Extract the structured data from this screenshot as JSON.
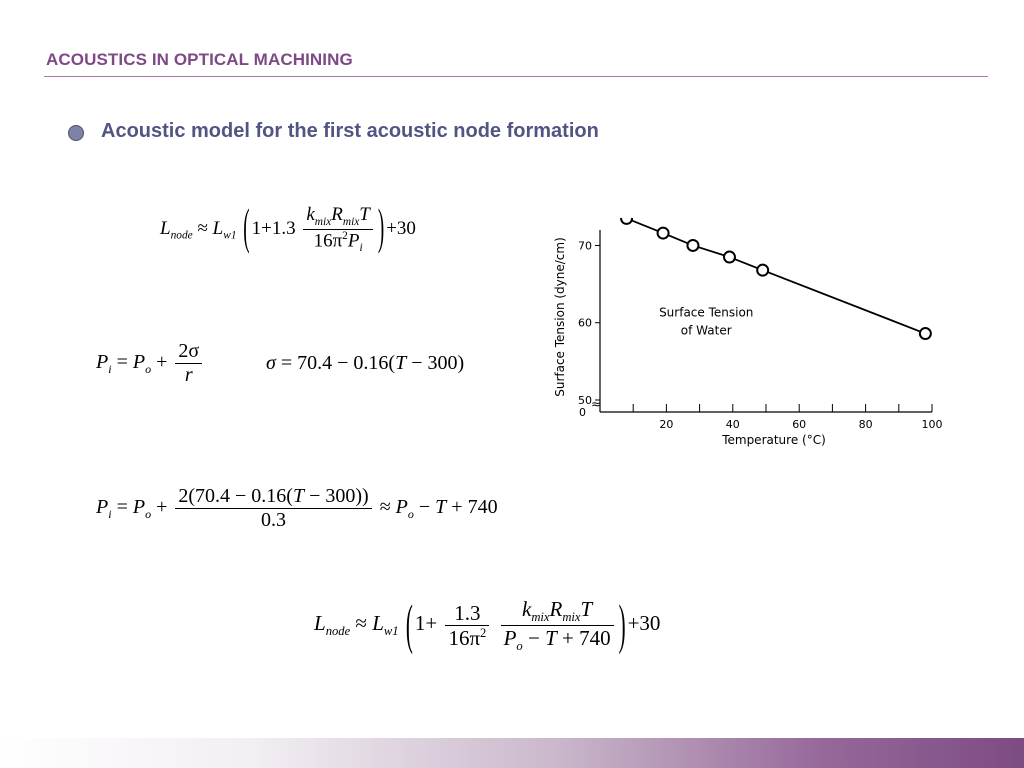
{
  "header": {
    "title": "ACOUSTICS IN OPTICAL MACHINING"
  },
  "bullet": {
    "text": "Acoustic model for the first acoustic node formation"
  },
  "equations": {
    "eq1": {
      "lhs": "L",
      "lhs_sub": "node",
      "approx": "≈",
      "L2": "L",
      "L2_sub": "w1",
      "one_plus": "1+1.3",
      "num": "k",
      "num_sub1": "mix",
      "num_R": "R",
      "num_sub2": "mix",
      "num_T": "T",
      "den": "16π",
      "den_sup": "2",
      "den_P": "P",
      "den_sub": "i",
      "tail": "+30"
    },
    "eq2": {
      "lhs": "P",
      "lhs_sub": "i",
      "eq": "= ",
      "P": "P",
      "P_sub": "o",
      "plus": "+",
      "num": "2σ",
      "den": "r"
    },
    "eq3": {
      "text_sigma": "σ",
      "text": " = 70.4 − 0.16(",
      "T": "T",
      "tail": " − 300)"
    },
    "eq4": {
      "lhs": "P",
      "lhs_sub": "i",
      "eq": "= ",
      "P": "P",
      "P_sub": "o",
      "plus": "+",
      "num_a": "2(70.4 − 0.16(",
      "num_T": "T",
      "num_b": " − 300))",
      "den": "0.3",
      "approx": "≈ ",
      "r_P": "P",
      "r_sub": "o",
      "r_a": " − ",
      "r_T": "T",
      "r_b": " + 740"
    },
    "eq5": {
      "lhs": "L",
      "lhs_sub": "node",
      "approx": "≈",
      "L2": "L",
      "L2_sub": "w1",
      "one_plus": "1+",
      "f1_num": "1.3",
      "f1_den": "16π",
      "f1_den_sup": "2",
      "f2_num_k": "k",
      "f2_sub1": "mix",
      "f2_num_R": "R",
      "f2_sub2": "mix",
      "f2_num_T": "T",
      "f2_den_P": "P",
      "f2_den_sub": "o",
      "f2_den_a": " − ",
      "f2_den_T": "T",
      "f2_den_b": " + 740",
      "tail": "+30"
    }
  },
  "chart_data": {
    "type": "line",
    "xlabel": "Temperature (°C)",
    "ylabel": "Surface Tension (dyne/cm)",
    "annotation": [
      "Surface Tension",
      "of Water"
    ],
    "x_ticks": [
      20,
      40,
      60,
      80,
      100
    ],
    "y_ticks": [
      50,
      60,
      70
    ],
    "y_zero_label": "0",
    "axis_break": "≈",
    "xlim": [
      0,
      100
    ],
    "ylim": [
      50,
      72
    ],
    "series": [
      {
        "x": [
          8,
          19,
          28,
          39,
          49,
          98
        ],
        "y": [
          73.5,
          71.6,
          70.0,
          68.5,
          66.8,
          58.6
        ]
      }
    ],
    "marker": "open-circle",
    "line_color": "#000000"
  }
}
